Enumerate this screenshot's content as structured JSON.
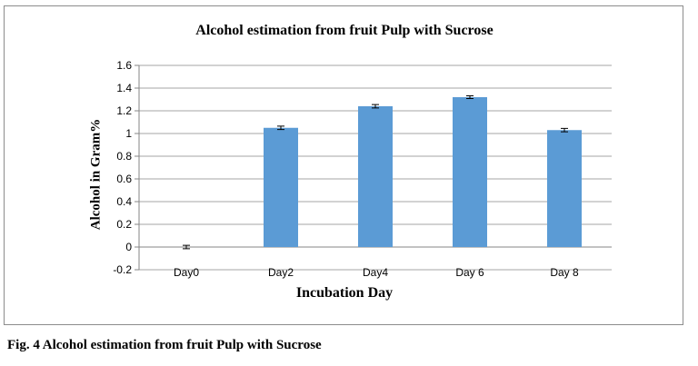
{
  "caption": "Fig. 4 Alcohol estimation from fruit Pulp with Sucrose",
  "chart_data": {
    "type": "bar",
    "title": "Alcohol estimation from fruit Pulp with Sucrose",
    "xlabel": "Incubation  Day",
    "ylabel": "Alcohol in Gram%",
    "categories": [
      "Day0",
      "Day2",
      "Day4",
      "Day 6",
      "Day 8"
    ],
    "values": [
      0,
      1.05,
      1.24,
      1.32,
      1.03
    ],
    "errors": [
      0.015,
      0.015,
      0.015,
      0.012,
      0.015
    ],
    "ylim": [
      -0.2,
      1.6
    ],
    "yticks": [
      "-0.2",
      "0",
      "0.2",
      "0.4",
      "0.6",
      "0.8",
      "1",
      "1.2",
      "1.4",
      "1.6"
    ],
    "grid": true,
    "bar_color": "#5b9bd5"
  }
}
